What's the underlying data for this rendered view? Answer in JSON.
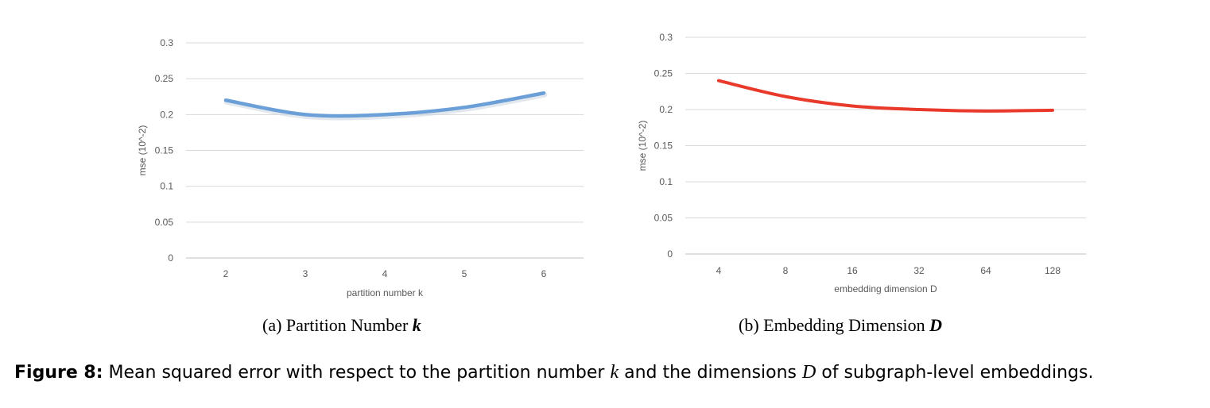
{
  "chart_data": [
    {
      "type": "line",
      "x": [
        "2",
        "3",
        "4",
        "5",
        "6"
      ],
      "values": [
        0.22,
        0.2,
        0.2,
        0.21,
        0.23
      ],
      "ylim": [
        0,
        0.3
      ],
      "yticks": [
        "0",
        "0.05",
        "0.1",
        "0.15",
        "0.2",
        "0.25",
        "0.3"
      ],
      "xlabel": "partition number k",
      "ylabel": "mse (10^-2)",
      "color": "#6a9fd8",
      "grid": true,
      "subcaption_prefix": "(a)  Partition Number",
      "subcaption_var": "k"
    },
    {
      "type": "line",
      "x": [
        "4",
        "8",
        "16",
        "32",
        "64",
        "128"
      ],
      "values": [
        0.24,
        0.218,
        0.205,
        0.2,
        0.198,
        0.199
      ],
      "ylim": [
        0,
        0.3
      ],
      "yticks": [
        "0",
        "0.05",
        "0.1",
        "0.15",
        "0.2",
        "0.25",
        "0.3"
      ],
      "xlabel": "embedding dimension D",
      "ylabel": "mse (10^-2)",
      "color": "#e8392a",
      "grid": true,
      "subcaption_prefix": "(b)  Embedding Dimension",
      "subcaption_var": "D"
    }
  ],
  "caption": {
    "label": "Figure 8:",
    "text1": " Mean squared error with respect to the partition number ",
    "var1": "k",
    "text2": " and the dimensions ",
    "var2": "D",
    "text3": " of subgraph-level embeddings."
  }
}
